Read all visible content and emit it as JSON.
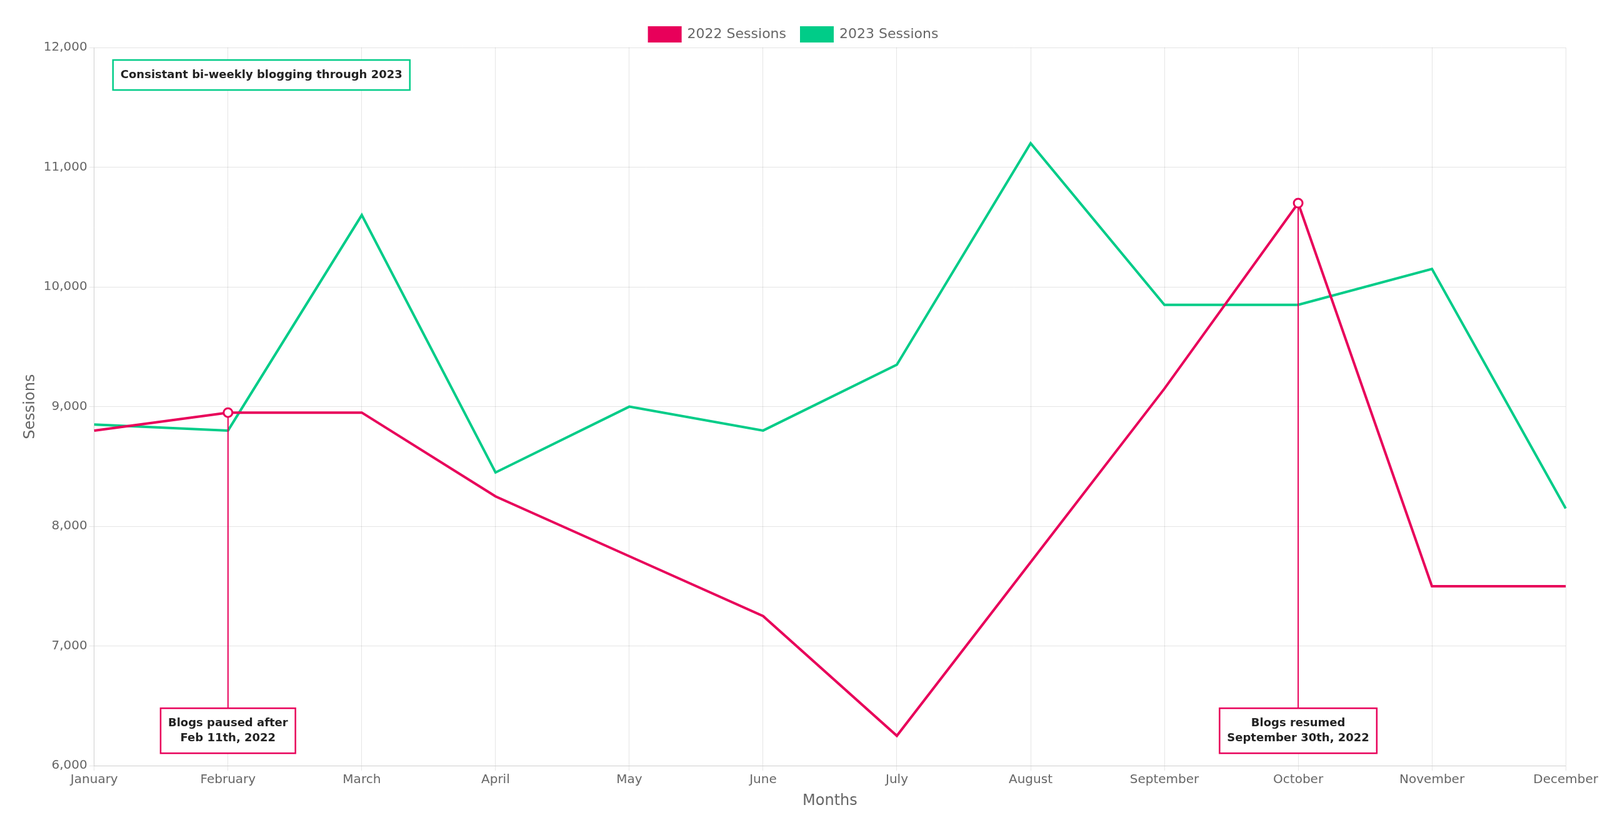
{
  "chart_data": {
    "type": "line",
    "categories": [
      "January",
      "February",
      "March",
      "April",
      "May",
      "June",
      "July",
      "August",
      "September",
      "October",
      "November",
      "December"
    ],
    "series": [
      {
        "name": "2022 Sessions",
        "color": "#E8005A",
        "marker": "none",
        "values": [
          8800,
          8950,
          8950,
          8250,
          7750,
          7250,
          6250,
          7700,
          9150,
          10700,
          7500,
          7500
        ]
      },
      {
        "name": "2023 Sessions",
        "color": "#00CC88",
        "marker": "none",
        "values": [
          8850,
          8800,
          10600,
          8450,
          9000,
          8800,
          9350,
          11200,
          9850,
          9850,
          10150,
          8150
        ]
      }
    ],
    "xlabel": "Months",
    "ylabel": "Sessions",
    "ylim": [
      6000,
      12000
    ],
    "yticks": [
      {
        "value": 6000,
        "label": "6,000"
      },
      {
        "value": 7000,
        "label": "7,000"
      },
      {
        "value": 8000,
        "label": "8,000"
      },
      {
        "value": 9000,
        "label": "9,000"
      },
      {
        "value": 10000,
        "label": "10,000"
      },
      {
        "value": 11000,
        "label": "11,000"
      },
      {
        "value": 12000,
        "label": "12,000"
      }
    ],
    "grid": true,
    "legend": "top",
    "annotations": [
      {
        "text": "Consistant bi-weekly blogging through 2023",
        "series": "2023 Sessions"
      },
      {
        "text": "Blogs paused after\nFeb 11th, 2022",
        "series": "2022 Sessions",
        "x": "February",
        "marker": "circle"
      },
      {
        "text": "Blogs resumed\nSeptember 30th, 2022",
        "series": "2022 Sessions",
        "x": "October",
        "marker": "circle"
      }
    ]
  }
}
